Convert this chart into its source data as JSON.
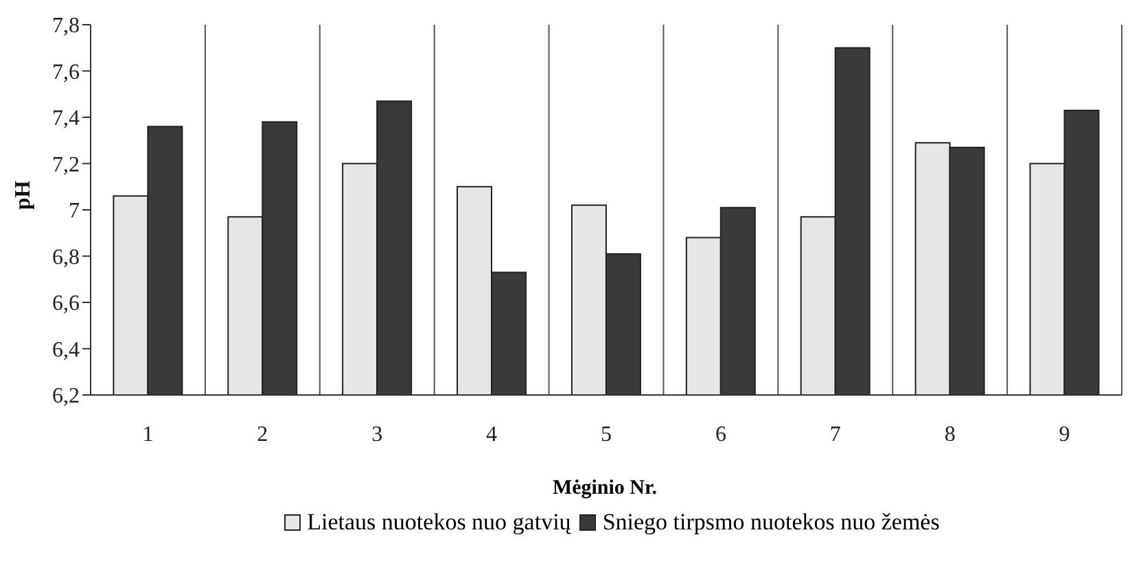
{
  "chart_data": {
    "type": "bar",
    "xlabel": "Mėginio Nr.",
    "ylabel": "pH",
    "categories": [
      "1",
      "2",
      "3",
      "4",
      "5",
      "6",
      "7",
      "8",
      "9"
    ],
    "series": [
      {
        "name": "Lietaus nuotekos nuo gatvių",
        "color": "#e6e6e6",
        "values": [
          7.06,
          6.97,
          7.2,
          7.1,
          7.02,
          6.88,
          6.97,
          7.29,
          7.2
        ]
      },
      {
        "name": "Sniego tirpsmo nuotekos nuo žemės",
        "color": "#3a3a3a",
        "values": [
          7.36,
          7.38,
          7.47,
          6.73,
          6.81,
          7.01,
          7.7,
          7.27,
          7.43
        ]
      }
    ],
    "ylim": [
      6.2,
      7.8
    ],
    "yticks": [
      {
        "value": 6.2,
        "label": "6,2"
      },
      {
        "value": 6.4,
        "label": "6,4"
      },
      {
        "value": 6.6,
        "label": "6,6"
      },
      {
        "value": 6.8,
        "label": "6,8"
      },
      7,
      {
        "value": 7.2,
        "label": "7,2"
      },
      {
        "value": 7.4,
        "label": "7,4"
      },
      {
        "value": 7.6,
        "label": "7,6"
      },
      {
        "value": 7.8,
        "label": "7,8"
      }
    ],
    "grid": "x",
    "legend": "bottom"
  }
}
